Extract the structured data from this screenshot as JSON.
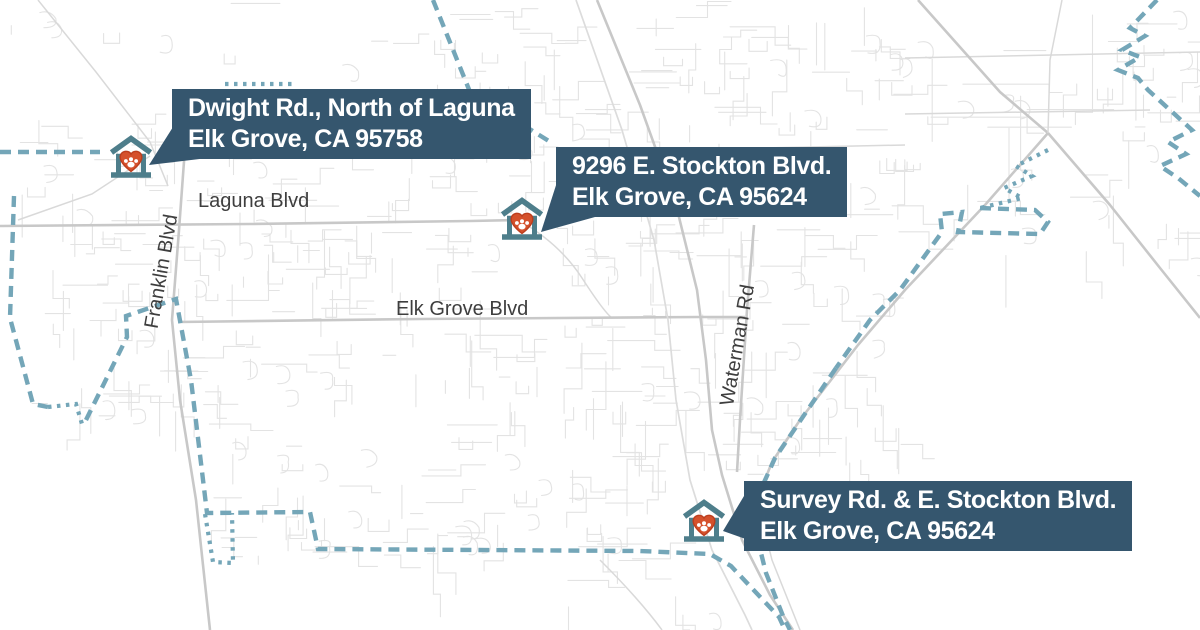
{
  "colors": {
    "callout_bg": "#35566E",
    "callout_text": "#FFFFFF",
    "boundary": "#74A6B8",
    "road_label_text": "#3E3E3E",
    "marker_frame": "#4E7E8B",
    "marker_heart": "#D5512C",
    "marker_heart_outline": "#BC3E1E",
    "marker_paw": "#FFFFFF",
    "minor_street": "#E3E3E3",
    "major_road": "#C8C8C8"
  },
  "road_labels": [
    {
      "name": "Laguna Blvd"
    },
    {
      "name": "Franklin Blvd"
    },
    {
      "name": "Elk Grove Blvd"
    },
    {
      "name": "Waterman Rd"
    }
  ],
  "locations": [
    {
      "line1": "Dwight Rd., North of Laguna",
      "line2": "Elk Grove, CA 95758"
    },
    {
      "line1": "9296 E. Stockton Blvd.",
      "line2": "Elk Grove, CA 95624"
    },
    {
      "line1": "Survey Rd. & E. Stockton Blvd.",
      "line2": "Elk Grove, CA 95624"
    }
  ]
}
